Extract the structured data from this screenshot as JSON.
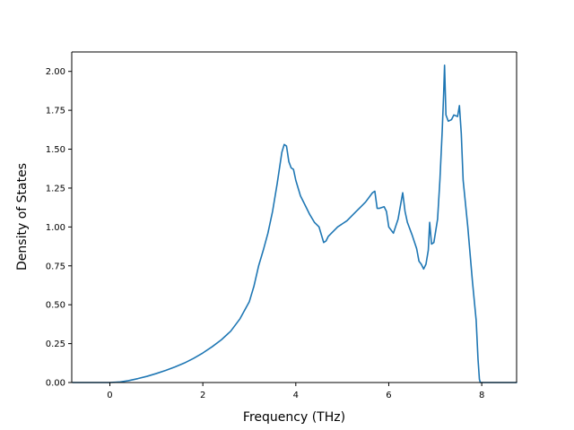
{
  "chart_data": {
    "type": "line",
    "title": "",
    "xlabel": "Frequency (THz)",
    "ylabel": "Density of States",
    "xlim": [
      -0.82,
      8.75
    ],
    "ylim": [
      0.0,
      2.125
    ],
    "x_ticks": [
      0,
      2,
      4,
      6,
      8
    ],
    "x_tick_labels": [
      "0",
      "2",
      "4",
      "6",
      "8"
    ],
    "y_ticks": [
      0.0,
      0.25,
      0.5,
      0.75,
      1.0,
      1.25,
      1.5,
      1.75,
      2.0
    ],
    "y_tick_labels": [
      "0.00",
      "0.25",
      "0.50",
      "0.75",
      "1.00",
      "1.25",
      "1.50",
      "1.75",
      "2.00"
    ],
    "grid": false,
    "legend": "none",
    "series": [
      {
        "color": "#1f77b4",
        "points": [
          [
            -0.8,
            0.0
          ],
          [
            0.0,
            0.0
          ],
          [
            0.2,
            0.003
          ],
          [
            0.4,
            0.012
          ],
          [
            0.6,
            0.025
          ],
          [
            0.8,
            0.04
          ],
          [
            1.0,
            0.058
          ],
          [
            1.2,
            0.078
          ],
          [
            1.4,
            0.1
          ],
          [
            1.6,
            0.125
          ],
          [
            1.8,
            0.155
          ],
          [
            2.0,
            0.19
          ],
          [
            2.2,
            0.23
          ],
          [
            2.4,
            0.275
          ],
          [
            2.6,
            0.33
          ],
          [
            2.8,
            0.41
          ],
          [
            3.0,
            0.52
          ],
          [
            3.1,
            0.62
          ],
          [
            3.2,
            0.75
          ],
          [
            3.3,
            0.85
          ],
          [
            3.4,
            0.96
          ],
          [
            3.5,
            1.1
          ],
          [
            3.6,
            1.28
          ],
          [
            3.7,
            1.48
          ],
          [
            3.75,
            1.53
          ],
          [
            3.8,
            1.52
          ],
          [
            3.85,
            1.42
          ],
          [
            3.9,
            1.38
          ],
          [
            3.95,
            1.37
          ],
          [
            4.0,
            1.3
          ],
          [
            4.1,
            1.2
          ],
          [
            4.2,
            1.14
          ],
          [
            4.3,
            1.08
          ],
          [
            4.4,
            1.03
          ],
          [
            4.5,
            1.0
          ],
          [
            4.6,
            0.9
          ],
          [
            4.65,
            0.91
          ],
          [
            4.7,
            0.94
          ],
          [
            4.8,
            0.97
          ],
          [
            4.9,
            1.0
          ],
          [
            5.0,
            1.02
          ],
          [
            5.1,
            1.04
          ],
          [
            5.2,
            1.07
          ],
          [
            5.3,
            1.1
          ],
          [
            5.4,
            1.13
          ],
          [
            5.5,
            1.16
          ],
          [
            5.6,
            1.2
          ],
          [
            5.65,
            1.22
          ],
          [
            5.7,
            1.23
          ],
          [
            5.75,
            1.12
          ],
          [
            5.8,
            1.12
          ],
          [
            5.9,
            1.13
          ],
          [
            5.95,
            1.1
          ],
          [
            6.0,
            1.0
          ],
          [
            6.1,
            0.96
          ],
          [
            6.2,
            1.05
          ],
          [
            6.3,
            1.22
          ],
          [
            6.35,
            1.1
          ],
          [
            6.4,
            1.03
          ],
          [
            6.5,
            0.95
          ],
          [
            6.6,
            0.86
          ],
          [
            6.65,
            0.78
          ],
          [
            6.7,
            0.76
          ],
          [
            6.75,
            0.73
          ],
          [
            6.8,
            0.76
          ],
          [
            6.85,
            0.85
          ],
          [
            6.88,
            1.03
          ],
          [
            6.92,
            0.89
          ],
          [
            6.97,
            0.9
          ],
          [
            7.05,
            1.05
          ],
          [
            7.1,
            1.3
          ],
          [
            7.15,
            1.62
          ],
          [
            7.18,
            1.85
          ],
          [
            7.2,
            2.04
          ],
          [
            7.23,
            1.72
          ],
          [
            7.28,
            1.68
          ],
          [
            7.35,
            1.69
          ],
          [
            7.4,
            1.72
          ],
          [
            7.48,
            1.71
          ],
          [
            7.52,
            1.78
          ],
          [
            7.56,
            1.6
          ],
          [
            7.6,
            1.3
          ],
          [
            7.7,
            1.0
          ],
          [
            7.8,
            0.65
          ],
          [
            7.88,
            0.4
          ],
          [
            7.92,
            0.15
          ],
          [
            7.95,
            0.02
          ],
          [
            7.97,
            0.0
          ],
          [
            8.75,
            0.0
          ]
        ]
      }
    ]
  }
}
